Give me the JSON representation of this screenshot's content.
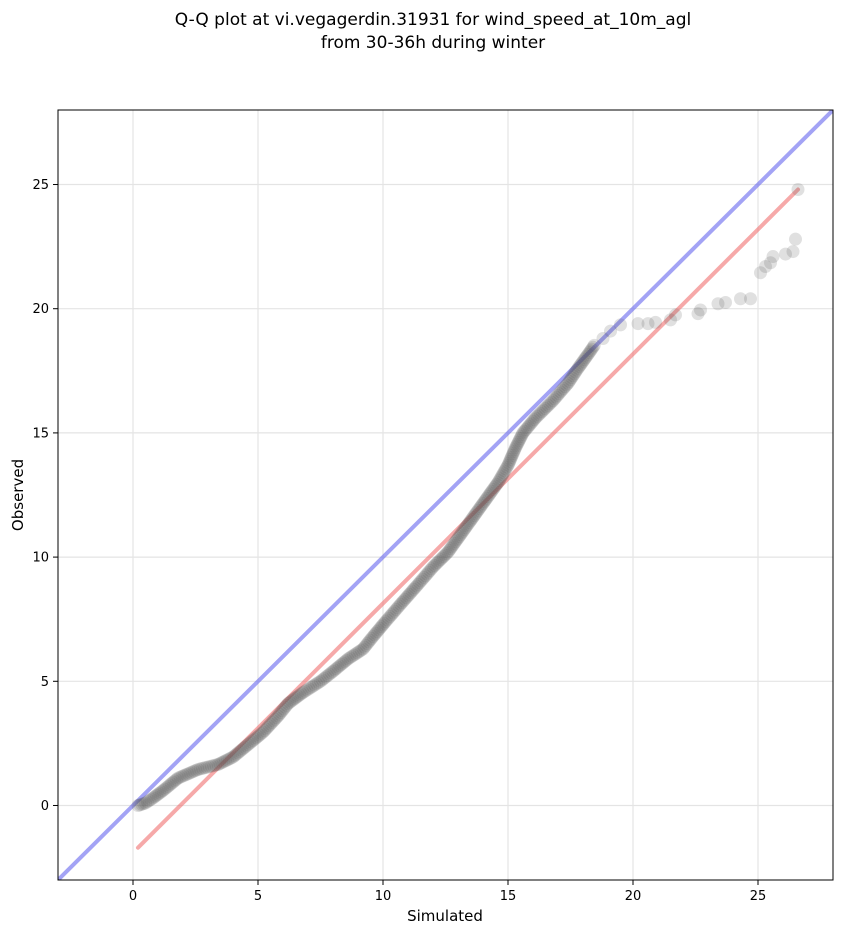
{
  "chart_data": {
    "type": "scatter",
    "title_line1": "Q-Q plot at vi.vegagerdin.31931 for wind_speed_at_10m_agl",
    "title_line2": "from 30-36h during winter",
    "xlabel": "Simulated",
    "ylabel": "Observed",
    "xlim": [
      -3,
      28
    ],
    "ylim": [
      -3,
      28
    ],
    "xticks": [
      0,
      5,
      10,
      15,
      20,
      25
    ],
    "yticks": [
      0,
      5,
      10,
      15,
      20,
      25
    ],
    "xtick_labels": [
      "0",
      "5",
      "10",
      "15",
      "20",
      "25"
    ],
    "ytick_labels": [
      "0",
      "5",
      "10",
      "15",
      "20",
      "25"
    ],
    "grid": true,
    "point_color": "#555555",
    "identity_line": {
      "color": "#6666ee",
      "from": [
        -3,
        -3
      ],
      "to": [
        28,
        28
      ]
    },
    "fit_line": {
      "color": "#f07070",
      "from": [
        0.2,
        -1.7
      ],
      "to": [
        26.6,
        24.8
      ]
    },
    "qq_curve": [
      [
        0.2,
        0.0
      ],
      [
        0.5,
        0.1
      ],
      [
        0.8,
        0.3
      ],
      [
        1.2,
        0.6
      ],
      [
        1.8,
        1.1
      ],
      [
        2.6,
        1.45
      ],
      [
        3.4,
        1.65
      ],
      [
        4.0,
        1.95
      ],
      [
        4.6,
        2.45
      ],
      [
        5.2,
        2.95
      ],
      [
        5.8,
        3.6
      ],
      [
        6.2,
        4.1
      ],
      [
        6.8,
        4.55
      ],
      [
        7.5,
        5.0
      ],
      [
        8.0,
        5.4
      ],
      [
        8.6,
        5.9
      ],
      [
        9.2,
        6.3
      ],
      [
        9.6,
        6.8
      ],
      [
        10.1,
        7.4
      ],
      [
        10.7,
        8.1
      ],
      [
        11.4,
        8.9
      ],
      [
        12.0,
        9.6
      ],
      [
        12.6,
        10.2
      ],
      [
        13.1,
        10.9
      ],
      [
        13.6,
        11.6
      ],
      [
        14.1,
        12.3
      ],
      [
        14.6,
        13.0
      ],
      [
        15.0,
        13.7
      ],
      [
        15.3,
        14.4
      ],
      [
        15.6,
        15.0
      ],
      [
        16.1,
        15.6
      ],
      [
        16.8,
        16.3
      ],
      [
        17.4,
        17.0
      ],
      [
        17.8,
        17.6
      ],
      [
        18.3,
        18.3
      ],
      [
        18.5,
        18.6
      ]
    ],
    "tail_points": [
      [
        18.8,
        18.8
      ],
      [
        19.1,
        19.1
      ],
      [
        19.5,
        19.35
      ],
      [
        20.2,
        19.4
      ],
      [
        20.6,
        19.4
      ],
      [
        20.9,
        19.45
      ],
      [
        21.5,
        19.55
      ],
      [
        21.7,
        19.75
      ],
      [
        22.6,
        19.8
      ],
      [
        22.7,
        19.95
      ],
      [
        23.4,
        20.2
      ],
      [
        23.7,
        20.25
      ],
      [
        24.3,
        20.4
      ],
      [
        24.7,
        20.4
      ],
      [
        25.1,
        21.45
      ],
      [
        25.3,
        21.7
      ],
      [
        25.5,
        21.85
      ],
      [
        25.6,
        22.1
      ],
      [
        26.1,
        22.2
      ],
      [
        26.4,
        22.3
      ],
      [
        26.5,
        22.8
      ],
      [
        26.6,
        24.8
      ]
    ]
  }
}
